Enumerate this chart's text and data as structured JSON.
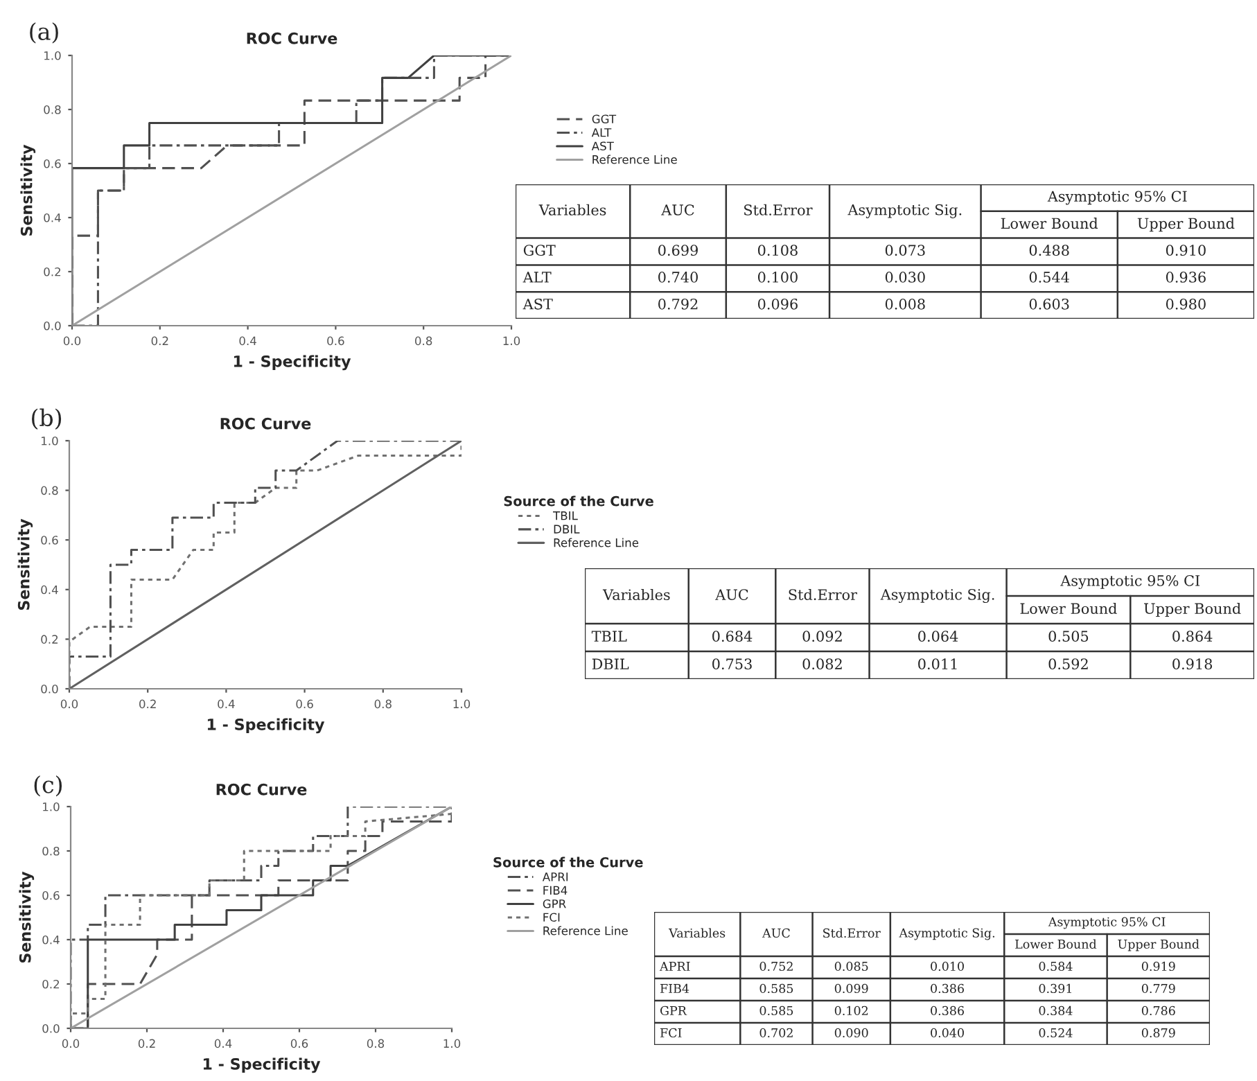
{
  "chart_data": [
    {
      "type": "line",
      "title": "ROC Curve",
      "xlabel": "1 - Specificity",
      "ylabel": "Sensitivity",
      "annotations": [
        "(a)"
      ],
      "legend": "right",
      "xlim": [
        0,
        1
      ],
      "ylim": [
        0,
        1
      ],
      "xticks": [
        {
          "value": 0,
          "label": "0.0"
        },
        {
          "value": 0.2,
          "label": "0.2"
        },
        {
          "value": 0.4,
          "label": "0.4"
        },
        {
          "value": 0.6,
          "label": "0.6"
        },
        {
          "value": 0.8,
          "label": "0.8"
        },
        {
          "value": 1,
          "label": "1.0"
        }
      ],
      "yticks": [
        {
          "value": 0,
          "label": "0.0"
        },
        {
          "value": 0.2,
          "label": "0.2"
        },
        {
          "value": 0.4,
          "label": "0.4"
        },
        {
          "value": 0.6,
          "label": "0.6"
        },
        {
          "value": 0.8,
          "label": "0.8"
        },
        {
          "value": 1,
          "label": "1.0"
        }
      ],
      "series": [
        {
          "name": "GGT",
          "color": "#505050",
          "line_style": "dashed",
          "x": [
            0,
            0,
            0.059,
            0.059,
            0.118,
            0.118,
            0.294,
            0.353,
            0.529,
            0.529,
            0.882,
            0.882,
            0.941,
            0.941,
            1
          ],
          "values": [
            0,
            0.333,
            0.333,
            0.5,
            0.5,
            0.583,
            0.583,
            0.667,
            0.667,
            0.833,
            0.833,
            0.917,
            0.917,
            1,
            1
          ]
        },
        {
          "name": "ALT",
          "color": "#505050",
          "line_style": "dashdot",
          "x": [
            0,
            0.059,
            0.059,
            0.118,
            0.118,
            0.176,
            0.176,
            0.471,
            0.471,
            0.647,
            0.647,
            0.706,
            0.706,
            0.824,
            0.824,
            1
          ],
          "values": [
            0,
            0,
            0.5,
            0.5,
            0.583,
            0.583,
            0.667,
            0.667,
            0.75,
            0.75,
            0.833,
            0.833,
            0.917,
            0.917,
            1,
            1
          ]
        },
        {
          "name": "AST",
          "color": "#404040",
          "line_style": "solid",
          "x": [
            0,
            0,
            0.118,
            0.118,
            0.176,
            0.176,
            0.706,
            0.706,
            0.765,
            0.824,
            1
          ],
          "values": [
            0,
            0.583,
            0.583,
            0.667,
            0.667,
            0.75,
            0.75,
            0.917,
            0.917,
            1,
            1
          ]
        },
        {
          "name": "Reference Line",
          "color": "#a0a0a0",
          "line_style": "solid",
          "x": [
            0,
            1
          ],
          "values": [
            0,
            1
          ]
        }
      ]
    },
    {
      "type": "other",
      "categories": [
        "Variables",
        "AUC",
        "Std.Error",
        "Asymptotic Sig.",
        "Lower Bound",
        "Upper Bound"
      ],
      "annotations": [
        "Asymptotic 95% CI"
      ],
      "y_categories": [
        "GGT",
        "ALT",
        "AST"
      ],
      "cell_labels": [
        [
          "0.699",
          "0.108",
          "0.073",
          "0.488",
          "0.910"
        ],
        [
          "0.740",
          "0.100",
          "0.030",
          "0.544",
          "0.936"
        ],
        [
          "0.792",
          "0.096",
          "0.008",
          "0.603",
          "0.980"
        ]
      ]
    },
    {
      "type": "line",
      "title": "ROC Curve",
      "xlabel": "1 - Specificity",
      "ylabel": "Sensitivity",
      "annotations": [
        "(b)"
      ],
      "legend": "right",
      "legend_title": "Source of the Curve",
      "xlim": [
        0,
        1
      ],
      "ylim": [
        0,
        1
      ],
      "xticks": [
        {
          "value": 0,
          "label": "0.0"
        },
        {
          "value": 0.2,
          "label": "0.2"
        },
        {
          "value": 0.4,
          "label": "0.4"
        },
        {
          "value": 0.6,
          "label": "0.6"
        },
        {
          "value": 0.8,
          "label": "0.8"
        },
        {
          "value": 1,
          "label": "1.0"
        }
      ],
      "yticks": [
        {
          "value": 0,
          "label": "0.0"
        },
        {
          "value": 0.2,
          "label": "0.2"
        },
        {
          "value": 0.4,
          "label": "0.4"
        },
        {
          "value": 0.6,
          "label": "0.6"
        },
        {
          "value": 0.8,
          "label": "0.8"
        },
        {
          "value": 1,
          "label": "1.0"
        }
      ],
      "series": [
        {
          "name": "TBIL",
          "color": "#707070",
          "line_style": "dotted",
          "x": [
            0,
            0,
            0.053,
            0.158,
            0.158,
            0.263,
            0.316,
            0.368,
            0.368,
            0.421,
            0.421,
            0.474,
            0.526,
            0.579,
            0.579,
            0.632,
            0.737,
            1,
            1
          ],
          "values": [
            0,
            0.19,
            0.25,
            0.25,
            0.44,
            0.44,
            0.56,
            0.56,
            0.63,
            0.63,
            0.75,
            0.75,
            0.81,
            0.81,
            0.88,
            0.88,
            0.94,
            0.94,
            1
          ]
        },
        {
          "name": "DBIL",
          "color": "#505050",
          "line_style": "dashdot",
          "x": [
            0,
            0,
            0.105,
            0.105,
            0.158,
            0.158,
            0.263,
            0.263,
            0.368,
            0.368,
            0.474,
            0.474,
            0.526,
            0.526,
            0.579,
            0.684,
            1
          ],
          "values": [
            0,
            0.13,
            0.13,
            0.5,
            0.5,
            0.56,
            0.56,
            0.69,
            0.69,
            0.75,
            0.75,
            0.81,
            0.81,
            0.88,
            0.88,
            1,
            1
          ]
        },
        {
          "name": "Reference Line",
          "color": "#606060",
          "line_style": "solid",
          "x": [
            0,
            1
          ],
          "values": [
            0,
            1
          ]
        }
      ]
    },
    {
      "type": "other",
      "categories": [
        "Variables",
        "AUC",
        "Std.Error",
        "Asymptotic Sig.",
        "Lower Bound",
        "Upper Bound"
      ],
      "annotations": [
        "Asymptotic 95% CI"
      ],
      "y_categories": [
        "TBIL",
        "DBIL"
      ],
      "cell_labels": [
        [
          "0.684",
          "0.092",
          "0.064",
          "0.505",
          "0.864"
        ],
        [
          "0.753",
          "0.082",
          "0.011",
          "0.592",
          "0.918"
        ]
      ]
    },
    {
      "type": "line",
      "title": "ROC Curve",
      "xlabel": "1 - Specificity",
      "ylabel": "Sensitivity",
      "annotations": [
        "(c)"
      ],
      "legend": "right",
      "legend_title": "Source of the Curve",
      "xlim": [
        0,
        1
      ],
      "ylim": [
        0,
        1
      ],
      "xticks": [
        {
          "value": 0,
          "label": "0.0"
        },
        {
          "value": 0.2,
          "label": "0.2"
        },
        {
          "value": 0.4,
          "label": "0.4"
        },
        {
          "value": 0.6,
          "label": "0.6"
        },
        {
          "value": 0.8,
          "label": "0.8"
        },
        {
          "value": 1,
          "label": "1.0"
        }
      ],
      "yticks": [
        {
          "value": 0,
          "label": "0.0"
        },
        {
          "value": 0.2,
          "label": "0.2"
        },
        {
          "value": 0.4,
          "label": "0.4"
        },
        {
          "value": 0.6,
          "label": "0.6"
        },
        {
          "value": 0.8,
          "label": "0.8"
        },
        {
          "value": 1,
          "label": "1.0"
        }
      ],
      "series": [
        {
          "name": "APRI",
          "color": "#505050",
          "line_style": "dashdot",
          "x": [
            0,
            0,
            0.045,
            0.045,
            0.091,
            0.091,
            0.364,
            0.364,
            0.5,
            0.5,
            0.545,
            0.545,
            0.636,
            0.636,
            0.727,
            0.727,
            1
          ],
          "values": [
            0,
            0.4,
            0.4,
            0.467,
            0.467,
            0.6,
            0.6,
            0.667,
            0.667,
            0.733,
            0.733,
            0.8,
            0.8,
            0.867,
            0.867,
            1,
            1
          ]
        },
        {
          "name": "FIB4",
          "color": "#505050",
          "line_style": "dashed",
          "x": [
            0,
            0.045,
            0.045,
            0.182,
            0.227,
            0.227,
            0.318,
            0.318,
            0.545,
            0.545,
            0.727,
            0.727,
            0.773,
            0.773,
            0.818,
            0.818,
            1,
            1
          ],
          "values": [
            0,
            0,
            0.2,
            0.2,
            0.333,
            0.4,
            0.4,
            0.6,
            0.6,
            0.667,
            0.667,
            0.8,
            0.8,
            0.867,
            0.867,
            0.933,
            0.933,
            1
          ]
        },
        {
          "name": "GPR",
          "color": "#404040",
          "line_style": "solid",
          "x": [
            0,
            0.045,
            0.045,
            0.273,
            0.273,
            0.409,
            0.409,
            0.5,
            0.5,
            0.636,
            0.636,
            0.682,
            0.682,
            0.727,
            1
          ],
          "values": [
            0,
            0,
            0.4,
            0.4,
            0.467,
            0.467,
            0.533,
            0.533,
            0.6,
            0.6,
            0.667,
            0.667,
            0.733,
            0.733,
            1
          ]
        },
        {
          "name": "FCI",
          "color": "#707070",
          "line_style": "dotted",
          "x": [
            0,
            0,
            0.045,
            0.045,
            0.091,
            0.091,
            0.182,
            0.182,
            0.364,
            0.364,
            0.455,
            0.455,
            0.682,
            0.682,
            0.773,
            0.773,
            1,
            1
          ],
          "values": [
            0,
            0.067,
            0.067,
            0.133,
            0.133,
            0.467,
            0.467,
            0.6,
            0.6,
            0.667,
            0.667,
            0.8,
            0.8,
            0.867,
            0.867,
            0.933,
            0.967,
            1
          ]
        },
        {
          "name": "Reference Line",
          "color": "#a0a0a0",
          "line_style": "solid",
          "x": [
            0,
            1
          ],
          "values": [
            0,
            1
          ]
        }
      ]
    },
    {
      "type": "other",
      "categories": [
        "Variables",
        "AUC",
        "Std.Error",
        "Asymptotic Sig.",
        "Lower Bound",
        "Upper Bound"
      ],
      "annotations": [
        "Asymptotic 95% CI"
      ],
      "y_categories": [
        "APRI",
        "FIB4",
        "GPR",
        "FCI"
      ],
      "cell_labels": [
        [
          "0.752",
          "0.085",
          "0.010",
          "0.584",
          "0.919"
        ],
        [
          "0.585",
          "0.099",
          "0.386",
          "0.391",
          "0.779"
        ],
        [
          "0.585",
          "0.102",
          "0.386",
          "0.384",
          "0.786"
        ],
        [
          "0.702",
          "0.090",
          "0.040",
          "0.524",
          "0.879"
        ]
      ]
    }
  ]
}
